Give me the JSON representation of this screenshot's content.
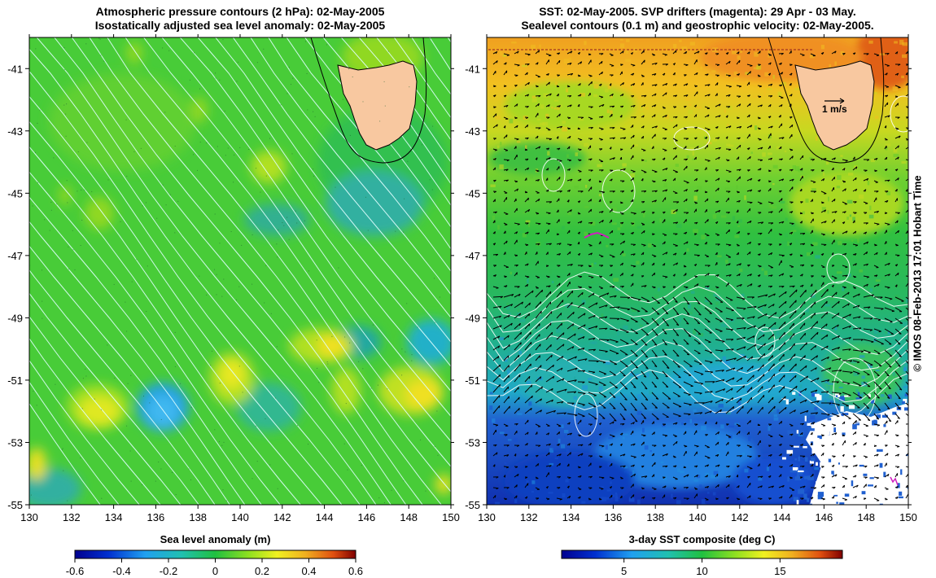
{
  "left_panel": {
    "title_line1": "Atmospheric pressure contours (2 hPa): 02-May-2005",
    "title_line2": "Isostatically adjusted sea level anomaly: 02-May-2005",
    "colorbar_title": "Sea level anomaly (m)",
    "colorbar_ticks": [
      "-0.6",
      "-0.4",
      "-0.2",
      "0",
      "0.2",
      "0.4",
      "0.6"
    ],
    "colorbar_range": [
      -0.6,
      0.6
    ]
  },
  "right_panel": {
    "title_line1": "SST: 02-May-2005. SVP drifters (magenta): 29 Apr - 03 May.",
    "title_line2": "Sealevel contours (0.1 m) and geostrophic velocity: 02-May-2005.",
    "colorbar_title": "3-day SST composite (deg C)",
    "colorbar_ticks": [
      "5",
      "10",
      "15"
    ],
    "colorbar_range": [
      1,
      19
    ],
    "velocity_scale_label": "1 m/s"
  },
  "axes": {
    "lon_ticks": [
      "130",
      "132",
      "134",
      "136",
      "138",
      "140",
      "142",
      "144",
      "146",
      "148",
      "150"
    ],
    "lat_ticks": [
      "-41",
      "-43",
      "-45",
      "-47",
      "-49",
      "-51",
      "-53",
      "-55"
    ],
    "lon_range": [
      130,
      150
    ],
    "lat_range": [
      -55,
      -40
    ]
  },
  "copyright": "© IMOS 08-Feb-2013 17:01 Hobart Time",
  "colors": {
    "land": "#f8c8a0",
    "drifter": "#d020c0",
    "contour": "#ffffff"
  }
}
